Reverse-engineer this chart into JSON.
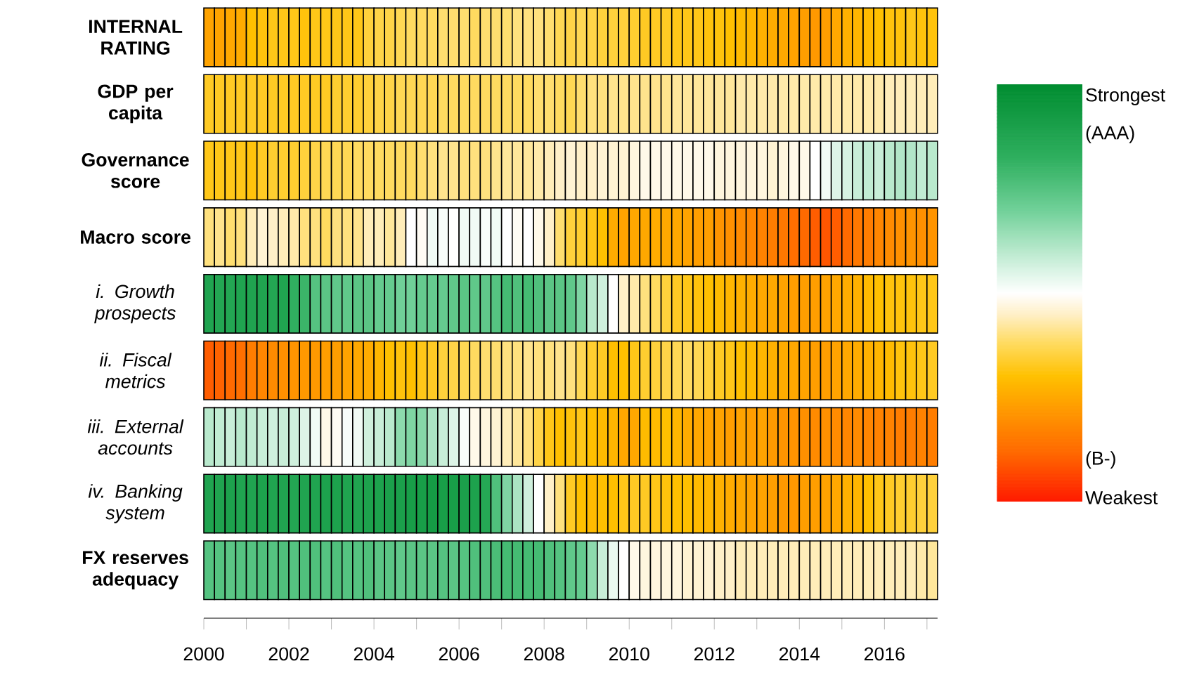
{
  "chart_data": {
    "type": "heatmap",
    "x": [
      2000.125,
      2000.375,
      2000.625,
      2000.875,
      2001.125,
      2001.375,
      2001.625,
      2001.875,
      2002.125,
      2002.375,
      2002.625,
      2002.875,
      2003.125,
      2003.375,
      2003.625,
      2003.875,
      2004.125,
      2004.375,
      2004.625,
      2004.875,
      2005.125,
      2005.375,
      2005.625,
      2005.875,
      2006.125,
      2006.375,
      2006.625,
      2006.875,
      2007.125,
      2007.375,
      2007.625,
      2007.875,
      2008.125,
      2008.375,
      2008.625,
      2008.875,
      2009.125,
      2009.375,
      2009.625,
      2009.875,
      2010.125,
      2010.375,
      2010.625,
      2010.875,
      2011.125,
      2011.375,
      2011.625,
      2011.875,
      2012.125,
      2012.375,
      2012.625,
      2012.875,
      2013.125,
      2013.375,
      2013.625,
      2013.875,
      2014.125,
      2014.375,
      2014.625,
      2014.875,
      2015.125,
      2015.375,
      2015.625,
      2015.875,
      2016.125,
      2016.375,
      2016.625,
      2016.875,
      2017.125
    ],
    "xlim": [
      2000,
      2017.25
    ],
    "xticks": [
      2000,
      {
        "value": 2001,
        "label": null
      },
      2002,
      {
        "value": 2003,
        "label": null
      },
      2004,
      {
        "value": 2005,
        "label": null
      },
      2006,
      {
        "value": 2007,
        "label": null
      },
      2008,
      {
        "value": 2009,
        "label": null
      },
      2010,
      {
        "value": 2011,
        "label": null
      },
      2012,
      {
        "value": 2013,
        "label": null
      },
      2014,
      {
        "value": 2015,
        "label": null
      },
      2016,
      {
        "value": 2017,
        "label": null
      }
    ],
    "y_categories": [
      "**INTERNAL RATING**",
      "**GDP per capita**",
      "**Governance score**",
      "**Macro score**",
      "*i. Growth prospects*",
      "*ii. Fiscal metrics*",
      "*iii. External accounts*",
      "*iv. Banking system*",
      "**FX reserves adequacy**"
    ],
    "cells": [
      [
        0.24,
        0.24,
        0.25,
        0.26,
        0.3,
        0.31,
        0.32,
        0.32,
        0.32,
        0.31,
        0.32,
        0.32,
        0.32,
        0.32,
        0.32,
        0.35,
        0.36,
        0.36,
        0.37,
        0.38,
        0.38,
        0.38,
        0.39,
        0.39,
        0.39,
        0.38,
        0.39,
        0.39,
        0.39,
        0.4,
        0.4,
        0.4,
        0.39,
        0.37,
        0.36,
        0.37,
        0.36,
        0.35,
        0.35,
        0.35,
        0.34,
        0.33,
        0.33,
        0.33,
        0.32,
        0.32,
        0.32,
        0.31,
        0.31,
        0.3,
        0.29,
        0.28,
        0.27,
        0.26,
        0.25,
        0.24,
        0.23,
        0.22,
        0.23,
        0.25,
        0.27,
        0.28,
        0.29,
        0.3,
        0.31,
        0.31,
        0.32,
        0.31,
        0.31
      ],
      [
        0.33,
        0.33,
        0.33,
        0.33,
        0.33,
        0.33,
        0.33,
        0.33,
        0.33,
        0.33,
        0.33,
        0.33,
        0.34,
        0.34,
        0.34,
        0.35,
        0.36,
        0.36,
        0.37,
        0.37,
        0.37,
        0.37,
        0.38,
        0.38,
        0.38,
        0.38,
        0.38,
        0.38,
        0.38,
        0.38,
        0.38,
        0.39,
        0.39,
        0.38,
        0.37,
        0.39,
        0.4,
        0.4,
        0.41,
        0.41,
        0.41,
        0.41,
        0.41,
        0.41,
        0.42,
        0.42,
        0.42,
        0.42,
        0.42,
        0.42,
        0.43,
        0.43,
        0.43,
        0.43,
        0.43,
        0.43,
        0.43,
        0.43,
        0.43,
        0.43,
        0.43,
        0.43,
        0.43,
        0.43,
        0.44,
        0.44,
        0.44,
        0.44,
        0.44
      ],
      [
        0.32,
        0.32,
        0.32,
        0.32,
        0.31,
        0.33,
        0.34,
        0.34,
        0.34,
        0.35,
        0.36,
        0.37,
        0.37,
        0.37,
        0.38,
        0.38,
        0.38,
        0.38,
        0.38,
        0.38,
        0.39,
        0.4,
        0.41,
        0.41,
        0.4,
        0.4,
        0.4,
        0.41,
        0.42,
        0.42,
        0.42,
        0.43,
        0.44,
        0.45,
        0.46,
        0.45,
        0.45,
        0.46,
        0.46,
        0.46,
        0.47,
        0.48,
        0.48,
        0.48,
        0.48,
        0.48,
        0.48,
        0.48,
        0.47,
        0.47,
        0.47,
        0.47,
        0.47,
        0.46,
        0.47,
        0.48,
        0.48,
        0.5,
        0.52,
        0.55,
        0.56,
        0.58,
        0.59,
        0.58,
        0.6,
        0.61,
        0.61,
        0.59,
        0.6
      ],
      [
        0.4,
        0.41,
        0.39,
        0.4,
        0.44,
        0.46,
        0.45,
        0.44,
        0.43,
        0.4,
        0.4,
        0.38,
        0.4,
        0.4,
        0.41,
        0.44,
        0.44,
        0.42,
        0.44,
        0.5,
        0.49,
        0.52,
        0.51,
        0.5,
        0.52,
        0.52,
        0.51,
        0.52,
        0.5,
        0.49,
        0.5,
        0.48,
        0.45,
        0.39,
        0.35,
        0.34,
        0.32,
        0.3,
        0.26,
        0.24,
        0.25,
        0.25,
        0.26,
        0.25,
        0.25,
        0.24,
        0.23,
        0.23,
        0.21,
        0.2,
        0.19,
        0.18,
        0.17,
        0.16,
        0.15,
        0.13,
        0.12,
        0.1,
        0.09,
        0.1,
        0.12,
        0.15,
        0.16,
        0.18,
        0.19,
        0.2,
        0.21,
        0.2,
        0.21
      ],
      [
        0.88,
        0.87,
        0.87,
        0.88,
        0.88,
        0.88,
        0.87,
        0.88,
        0.82,
        0.8,
        0.75,
        0.74,
        0.73,
        0.73,
        0.74,
        0.74,
        0.72,
        0.72,
        0.7,
        0.7,
        0.72,
        0.72,
        0.72,
        0.73,
        0.74,
        0.73,
        0.73,
        0.75,
        0.78,
        0.76,
        0.78,
        0.76,
        0.74,
        0.74,
        0.73,
        0.68,
        0.6,
        0.57,
        0.5,
        0.45,
        0.43,
        0.4,
        0.38,
        0.35,
        0.33,
        0.32,
        0.31,
        0.3,
        0.29,
        0.28,
        0.27,
        0.26,
        0.25,
        0.25,
        0.24,
        0.23,
        0.23,
        0.23,
        0.24,
        0.25,
        0.26,
        0.27,
        0.29,
        0.3,
        0.31,
        0.31,
        0.31,
        0.32,
        0.32
      ],
      [
        0.1,
        0.11,
        0.12,
        0.13,
        0.16,
        0.18,
        0.19,
        0.2,
        0.21,
        0.22,
        0.22,
        0.23,
        0.23,
        0.24,
        0.25,
        0.26,
        0.28,
        0.3,
        0.31,
        0.3,
        0.32,
        0.33,
        0.35,
        0.36,
        0.37,
        0.38,
        0.39,
        0.39,
        0.4,
        0.4,
        0.41,
        0.4,
        0.4,
        0.41,
        0.4,
        0.37,
        0.34,
        0.33,
        0.3,
        0.3,
        0.32,
        0.34,
        0.35,
        0.36,
        0.37,
        0.38,
        0.37,
        0.35,
        0.33,
        0.32,
        0.3,
        0.29,
        0.28,
        0.27,
        0.26,
        0.25,
        0.24,
        0.23,
        0.23,
        0.24,
        0.25,
        0.26,
        0.27,
        0.28,
        0.29,
        0.31,
        0.31,
        0.32,
        0.33
      ],
      [
        0.6,
        0.59,
        0.58,
        0.6,
        0.59,
        0.58,
        0.57,
        0.58,
        0.57,
        0.55,
        0.52,
        0.48,
        0.49,
        0.51,
        0.52,
        0.57,
        0.58,
        0.6,
        0.66,
        0.68,
        0.67,
        0.62,
        0.58,
        0.55,
        0.51,
        0.48,
        0.47,
        0.46,
        0.44,
        0.42,
        0.4,
        0.36,
        0.32,
        0.3,
        0.31,
        0.32,
        0.3,
        0.29,
        0.28,
        0.25,
        0.25,
        0.29,
        0.29,
        0.3,
        0.28,
        0.26,
        0.25,
        0.24,
        0.24,
        0.23,
        0.24,
        0.23,
        0.24,
        0.22,
        0.21,
        0.21,
        0.2,
        0.19,
        0.2,
        0.19,
        0.18,
        0.19,
        0.18,
        0.17,
        0.17,
        0.16,
        0.16,
        0.17,
        0.16
      ],
      [
        0.88,
        0.88,
        0.89,
        0.88,
        0.88,
        0.89,
        0.88,
        0.88,
        0.87,
        0.88,
        0.88,
        0.89,
        0.89,
        0.88,
        0.88,
        0.89,
        0.89,
        0.9,
        0.9,
        0.91,
        0.91,
        0.92,
        0.91,
        0.91,
        0.9,
        0.89,
        0.86,
        0.76,
        0.68,
        0.62,
        0.57,
        0.5,
        0.45,
        0.4,
        0.33,
        0.3,
        0.29,
        0.3,
        0.3,
        0.32,
        0.33,
        0.33,
        0.32,
        0.31,
        0.3,
        0.3,
        0.29,
        0.28,
        0.27,
        0.26,
        0.25,
        0.24,
        0.24,
        0.23,
        0.22,
        0.22,
        0.23,
        0.23,
        0.24,
        0.25,
        0.27,
        0.28,
        0.3,
        0.32,
        0.33,
        0.34,
        0.34,
        0.35,
        0.35
      ],
      [
        0.75,
        0.75,
        0.74,
        0.75,
        0.75,
        0.76,
        0.75,
        0.76,
        0.75,
        0.76,
        0.76,
        0.75,
        0.76,
        0.75,
        0.75,
        0.76,
        0.74,
        0.74,
        0.73,
        0.74,
        0.74,
        0.74,
        0.75,
        0.74,
        0.75,
        0.76,
        0.76,
        0.77,
        0.78,
        0.78,
        0.78,
        0.78,
        0.76,
        0.75,
        0.73,
        0.72,
        0.66,
        0.58,
        0.53,
        0.5,
        0.48,
        0.47,
        0.47,
        0.47,
        0.47,
        0.46,
        0.46,
        0.46,
        0.45,
        0.45,
        0.44,
        0.44,
        0.44,
        0.44,
        0.44,
        0.44,
        0.44,
        0.44,
        0.44,
        0.44,
        0.44,
        0.44,
        0.44,
        0.44,
        0.44,
        0.44,
        0.44,
        0.43,
        0.42
      ]
    ],
    "clim": [
      0,
      1
    ],
    "cticks": [
      {
        "value": 0.97,
        "label": "Strongest"
      },
      {
        "value": 0.88,
        "label": "(AAA)"
      },
      {
        "value": 0.1,
        "label": "(B-)"
      },
      {
        "value": 0.01,
        "label": "Weakest"
      }
    ]
  }
}
